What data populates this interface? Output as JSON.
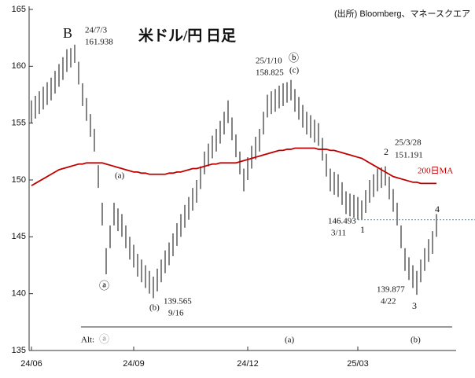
{
  "chart_data": {
    "type": "hilo",
    "title": "米ドル/円 日足",
    "source": "(出所) Bloomberg、マネースクエア",
    "categories": [
      "24/06",
      null,
      null,
      null,
      null,
      null,
      null,
      null,
      null,
      null,
      null,
      null,
      null,
      null,
      null,
      null,
      null,
      null,
      null,
      null,
      null,
      null,
      null,
      null,
      null,
      null,
      "24/09",
      null,
      null,
      null,
      null,
      null,
      null,
      null,
      null,
      null,
      null,
      null,
      null,
      null,
      null,
      null,
      null,
      null,
      null,
      null,
      null,
      null,
      null,
      null,
      null,
      null,
      null,
      null,
      null,
      "24/12",
      null,
      null,
      null,
      null,
      null,
      null,
      null,
      null,
      null,
      null,
      null,
      null,
      null,
      null,
      null,
      null,
      null,
      null,
      null,
      null,
      null,
      null,
      null,
      null,
      null,
      null,
      null,
      "25/03",
      null,
      null,
      null,
      null,
      null,
      null,
      null,
      null,
      null,
      null,
      null,
      null,
      null,
      null,
      null,
      null,
      null,
      null,
      null,
      null
    ],
    "high": [
      157,
      157.4,
      157.8,
      158.2,
      158.6,
      159,
      159.6,
      160.2,
      160.8,
      161.5,
      161.6,
      161.9,
      160.4,
      158.5,
      157.2,
      155.8,
      154.5,
      151.3,
      148,
      144,
      146,
      148,
      147.5,
      147,
      146,
      145,
      144.3,
      143.5,
      143,
      142.5,
      142,
      141.5,
      142.2,
      143,
      143.8,
      144.5,
      145.3,
      146.2,
      147,
      147.8,
      148.5,
      149.3,
      150,
      151.2,
      152.5,
      153.2,
      153.9,
      154.5,
      155.2,
      156,
      157,
      155.5,
      154,
      152.5,
      151,
      152,
      153,
      153.8,
      154.5,
      156,
      157.5,
      157.8,
      158,
      158.3,
      158.5,
      158.6,
      158.8,
      158,
      157.3,
      156.6,
      156,
      155.7,
      155.3,
      155,
      153.7,
      152.3,
      151,
      150.7,
      150.5,
      149.8,
      149,
      148.8,
      148.7,
      148.5,
      148.2,
      149.1,
      150,
      150.5,
      151,
      151.1,
      151.2,
      150.3,
      149.2,
      148,
      146,
      144,
      143.2,
      142.5,
      142,
      143,
      144,
      144.8,
      145.5,
      147
    ],
    "low": [
      155,
      155.4,
      155.8,
      156.2,
      156.6,
      157,
      157.6,
      158.2,
      158.8,
      159.5,
      159.9,
      160.3,
      158.4,
      156.5,
      155.2,
      153.8,
      152.5,
      149.3,
      146,
      141.7,
      144,
      146,
      145.5,
      145,
      144,
      143,
      142.3,
      141.5,
      141,
      140.5,
      140,
      139.6,
      140.2,
      141,
      141.8,
      142.5,
      143.3,
      144.2,
      145,
      145.8,
      146.5,
      147.3,
      148,
      149.2,
      150.5,
      151.2,
      151.9,
      152.5,
      153.2,
      154,
      155,
      153.5,
      152,
      150.5,
      149,
      150,
      151,
      151.8,
      152.5,
      154,
      155.5,
      155.8,
      156,
      156.3,
      156.5,
      156.8,
      157,
      156,
      155.3,
      154.6,
      154,
      153.7,
      153.3,
      153,
      151.7,
      150.3,
      149,
      148.7,
      148.5,
      147.8,
      147,
      146.8,
      146.7,
      146.5,
      146.5,
      147.1,
      148,
      148.5,
      149,
      149.3,
      149.5,
      148.3,
      147.2,
      146,
      144,
      142,
      141.2,
      140.5,
      139.9,
      141,
      142,
      142.8,
      143.5,
      145
    ],
    "bar_color": "#333333",
    "ma": {
      "name": "200日MA",
      "color": "#c00000",
      "values": [
        149.5,
        149.7,
        149.9,
        150.1,
        150.3,
        150.5,
        150.7,
        150.9,
        151,
        151.1,
        151.2,
        151.3,
        151.4,
        151.4,
        151.5,
        151.5,
        151.5,
        151.5,
        151.5,
        151.4,
        151.3,
        151.2,
        151.1,
        151,
        150.9,
        150.8,
        150.7,
        150.7,
        150.6,
        150.6,
        150.5,
        150.5,
        150.5,
        150.5,
        150.5,
        150.6,
        150.6,
        150.7,
        150.7,
        150.8,
        150.9,
        151,
        151,
        151.1,
        151.2,
        151.3,
        151.4,
        151.4,
        151.5,
        151.5,
        151.5,
        151.5,
        151.5,
        151.6,
        151.7,
        151.8,
        151.9,
        152,
        152.1,
        152.2,
        152.3,
        152.4,
        152.5,
        152.6,
        152.6,
        152.7,
        152.7,
        152.8,
        152.8,
        152.8,
        152.8,
        152.8,
        152.8,
        152.7,
        152.7,
        152.7,
        152.6,
        152.6,
        152.5,
        152.4,
        152.3,
        152.2,
        152.1,
        152,
        151.9,
        151.7,
        151.5,
        151.3,
        151.1,
        150.9,
        150.7,
        150.5,
        150.3,
        150.2,
        150.1,
        150,
        149.9,
        149.8,
        149.8,
        149.7,
        149.7,
        149.7,
        149.7,
        149.7
      ]
    },
    "reference_line": {
      "value": 146.5,
      "color": "#4aa8d8"
    },
    "ylim": [
      135,
      165
    ],
    "yticks": [
      135,
      140,
      145,
      150,
      155,
      160,
      165
    ],
    "annotations": [
      "B",
      "24/7/3",
      "161.938",
      "(a)",
      "ⓐ",
      "(b)",
      "139.565",
      "9/16",
      "25/1/10",
      "158.825",
      "ⓑ",
      "(c)",
      "2",
      "25/3/28",
      "151.191",
      "146.493",
      "3/11",
      "1",
      "4",
      "139.877",
      "4/22",
      "3",
      "Alt:",
      "ⓐ",
      "(a)",
      "(b)"
    ]
  }
}
